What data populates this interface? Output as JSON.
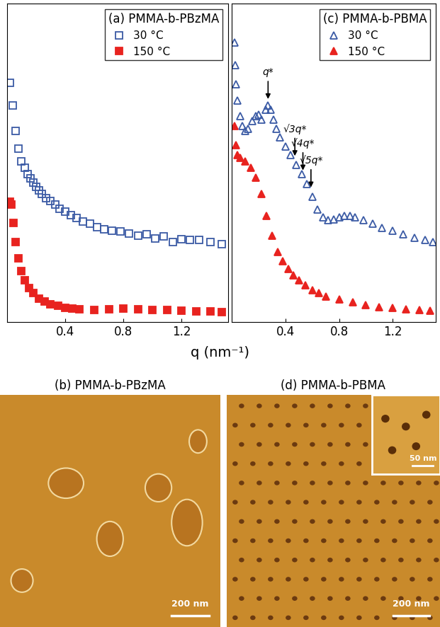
{
  "chart_data": [
    {
      "type": "scatter",
      "title": "(a) PMMA-b-PBzMA",
      "xlim": [
        0,
        1.52
      ],
      "xticks": [
        0.4,
        0.8,
        1.2
      ],
      "ylim": [
        0,
        11
      ],
      "yticks": [],
      "tick_labels": "x",
      "legend": "upper right",
      "series": [
        {
          "name": "30 °C",
          "color": "#3b5ba5",
          "marker": "open_square",
          "x": [
            0.02,
            0.04,
            0.06,
            0.08,
            0.1,
            0.12,
            0.14,
            0.16,
            0.18,
            0.2,
            0.22,
            0.24,
            0.27,
            0.3,
            0.33,
            0.36,
            0.4,
            0.44,
            0.48,
            0.52,
            0.57,
            0.62,
            0.67,
            0.72,
            0.78,
            0.84,
            0.9,
            0.96,
            1.02,
            1.08,
            1.14,
            1.2,
            1.26,
            1.32,
            1.4,
            1.48
          ],
          "values": [
            8.27,
            7.49,
            6.62,
            6.0,
            5.56,
            5.33,
            5.11,
            4.96,
            4.82,
            4.67,
            4.56,
            4.44,
            4.29,
            4.2,
            4.07,
            3.93,
            3.82,
            3.71,
            3.6,
            3.49,
            3.4,
            3.29,
            3.2,
            3.16,
            3.13,
            3.07,
            3.0,
            3.04,
            2.89,
            2.96,
            2.78,
            2.87,
            2.84,
            2.84,
            2.78,
            2.71
          ]
        },
        {
          "name": "150 °C",
          "color": "#e8231f",
          "marker": "filled_square",
          "x": [
            0.02,
            0.03,
            0.045,
            0.06,
            0.08,
            0.1,
            0.12,
            0.15,
            0.18,
            0.22,
            0.26,
            0.3,
            0.35,
            0.4,
            0.45,
            0.5,
            0.6,
            0.7,
            0.8,
            0.9,
            1.0,
            1.1,
            1.2,
            1.3,
            1.4,
            1.48
          ],
          "values": [
            4.16,
            4.07,
            3.44,
            2.78,
            2.22,
            1.78,
            1.44,
            1.18,
            1.0,
            0.82,
            0.71,
            0.62,
            0.56,
            0.51,
            0.47,
            0.44,
            0.42,
            0.44,
            0.47,
            0.44,
            0.42,
            0.42,
            0.4,
            0.38,
            0.38,
            0.36
          ]
        }
      ]
    },
    {
      "type": "scatter",
      "title": "(c) PMMA-b-PBMA",
      "xlim": [
        0,
        1.52
      ],
      "xticks": [
        0.4,
        0.8,
        1.2
      ],
      "ylim": [
        0,
        11
      ],
      "yticks": [],
      "tick_labels": "x",
      "legend": "upper right",
      "annotations": [
        {
          "text": "q*",
          "x": 0.27
        },
        {
          "text": "√3q*",
          "x": 0.47
        },
        {
          "text": "√4q*",
          "x": 0.53
        },
        {
          "text": "√5q*",
          "x": 0.59
        }
      ],
      "series": [
        {
          "name": "30 °C",
          "color": "#3b5ba5",
          "marker": "open_triangle",
          "x": [
            0.02,
            0.025,
            0.03,
            0.04,
            0.06,
            0.08,
            0.1,
            0.12,
            0.15,
            0.18,
            0.2,
            0.22,
            0.25,
            0.27,
            0.29,
            0.31,
            0.33,
            0.36,
            0.4,
            0.44,
            0.48,
            0.52,
            0.56,
            0.6,
            0.64,
            0.68,
            0.72,
            0.76,
            0.8,
            0.84,
            0.88,
            0.92,
            0.98,
            1.05,
            1.12,
            1.2,
            1.28,
            1.36,
            1.44,
            1.5
          ],
          "values": [
            9.67,
            8.89,
            8.22,
            7.67,
            7.11,
            6.78,
            6.6,
            6.67,
            6.96,
            7.11,
            7.18,
            7.0,
            7.33,
            7.49,
            7.33,
            7.0,
            6.67,
            6.38,
            6.07,
            5.78,
            5.44,
            5.11,
            4.78,
            4.33,
            3.89,
            3.62,
            3.53,
            3.56,
            3.62,
            3.67,
            3.67,
            3.62,
            3.53,
            3.4,
            3.27,
            3.16,
            3.04,
            2.93,
            2.84,
            2.78
          ]
        },
        {
          "name": "150 °C",
          "color": "#e8231f",
          "marker": "filled_triangle",
          "x": [
            0.02,
            0.03,
            0.04,
            0.06,
            0.1,
            0.14,
            0.18,
            0.22,
            0.26,
            0.3,
            0.34,
            0.38,
            0.42,
            0.46,
            0.5,
            0.55,
            0.6,
            0.65,
            0.7,
            0.8,
            0.9,
            1.0,
            1.1,
            1.2,
            1.3,
            1.4,
            1.48
          ],
          "values": [
            6.78,
            6.11,
            5.78,
            5.67,
            5.56,
            5.33,
            5.0,
            4.44,
            3.67,
            3.0,
            2.44,
            2.11,
            1.84,
            1.62,
            1.44,
            1.27,
            1.11,
            1.0,
            0.89,
            0.78,
            0.69,
            0.6,
            0.53,
            0.49,
            0.44,
            0.42,
            0.4
          ]
        }
      ]
    }
  ],
  "shared_x_label": "q (nm⁻¹)",
  "images": [
    {
      "title": "(b) PMMA-b-PBzMA",
      "scale_bar": "200 nm"
    },
    {
      "title": "(d) PMMA-b-PBMA",
      "scale_bar": "200 nm",
      "inset_scale_bar": "50 nm"
    }
  ]
}
